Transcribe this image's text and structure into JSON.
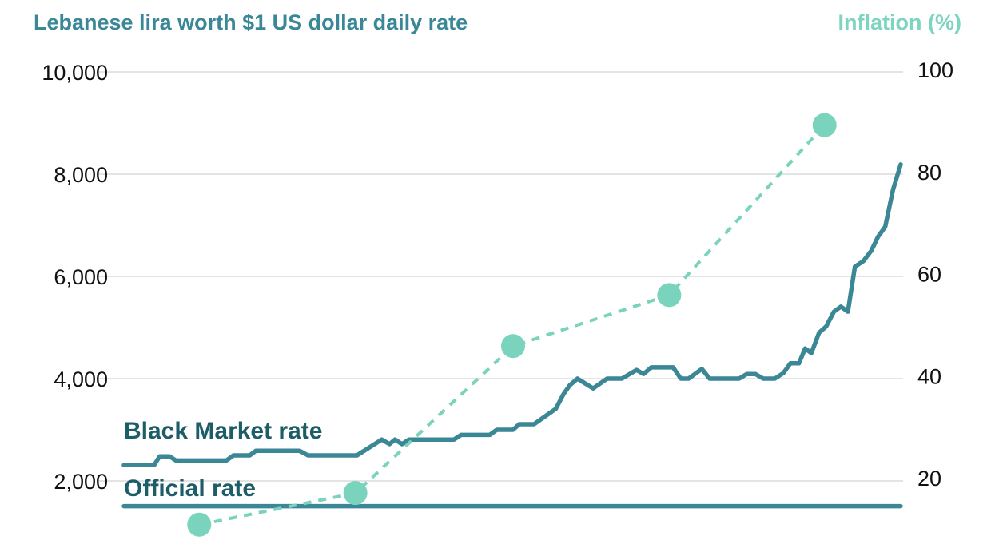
{
  "chart_data": {
    "type": "line",
    "title_left": "Lebanese lira worth $1 US dollar daily rate",
    "title_right": "Inflation (%)",
    "xlabel": "",
    "x_range": [
      0,
      100
    ],
    "y_left": {
      "range": [
        1000,
        10000
      ],
      "ticks": [
        2000,
        4000,
        6000,
        8000,
        10000
      ],
      "tick_labels": [
        "2,000",
        "4,000",
        "6,000",
        "8,000",
        "10,000"
      ]
    },
    "y_right": {
      "range": [
        20,
        100
      ],
      "ticks": [
        20,
        40,
        60,
        80,
        100
      ],
      "tick_labels": [
        "20",
        "40",
        "60",
        "80",
        "100"
      ]
    },
    "grid": true,
    "colors": {
      "rate_line": "#3b8796",
      "inflation": "#79d3bd",
      "title_left": "#3a8796",
      "title_right": "#7dd4bf",
      "labels": "#1d5d68",
      "grid": "#d4d4d4"
    },
    "series": [
      {
        "name": "Black Market rate",
        "axis": "left",
        "style": "solid",
        "x": [
          0,
          3.9,
          4.6,
          5.9,
          6.7,
          13.2,
          14.1,
          16.2,
          17,
          22.6,
          23.7,
          30,
          33.2,
          34.2,
          34.9,
          35.8,
          36.7,
          42.5,
          43.4,
          47.1,
          48,
          50.1,
          50.9,
          52.8,
          55.6,
          56.6,
          57.4,
          58.4,
          60.4,
          62.2,
          64.1,
          66,
          66.9,
          67.9,
          70.7,
          71.7,
          72.7,
          74.4,
          75.4,
          79.2,
          80.2,
          81.3,
          82.3,
          83.8,
          84.9,
          85.8,
          86.9,
          87.7,
          88.5,
          89.5,
          90.4,
          91.4,
          92.3,
          93.2,
          94.1,
          95.2,
          96.2,
          97.1,
          98,
          99,
          100
        ],
        "values": [
          2310,
          2310,
          2480,
          2480,
          2400,
          2400,
          2500,
          2500,
          2590,
          2590,
          2500,
          2500,
          2810,
          2720,
          2810,
          2720,
          2810,
          2810,
          2900,
          2900,
          3000,
          3000,
          3110,
          3110,
          3410,
          3700,
          3870,
          4000,
          3810,
          4000,
          4000,
          4170,
          4090,
          4220,
          4220,
          4000,
          4000,
          4190,
          4000,
          4000,
          4090,
          4090,
          4000,
          4000,
          4110,
          4300,
          4300,
          4590,
          4500,
          4900,
          5020,
          5310,
          5410,
          5310,
          6190,
          6300,
          6500,
          6780,
          6970,
          7690,
          8190
        ]
      },
      {
        "name": "Official rate",
        "axis": "left",
        "style": "solid",
        "x": [
          0,
          100
        ],
        "values": [
          1507,
          1507
        ]
      },
      {
        "name": "Inflation (%)",
        "axis": "right",
        "style": "dashed-with-markers",
        "x": [
          9.7,
          29.8,
          50.1,
          70.2,
          90.2
        ],
        "values": [
          10.8,
          17.0,
          45.8,
          55.8,
          89.1
        ]
      }
    ]
  }
}
